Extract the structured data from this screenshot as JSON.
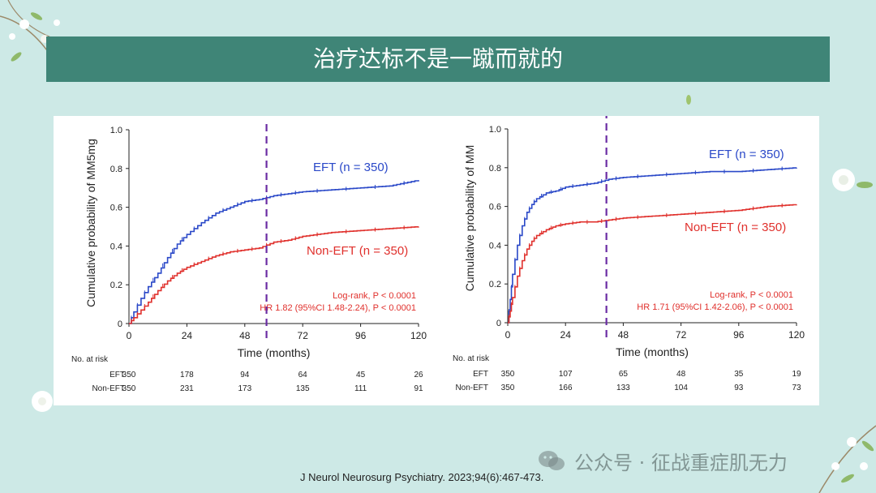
{
  "slide": {
    "title": "治疗达标不是一蹴而就的",
    "citation": "J Neurol Neurosurg Psychiatry. 2023;94(6):467-473.",
    "watermark": "公众号 · 征战重症肌无力"
  },
  "colors": {
    "title_bar": "#3f8577",
    "background": "#cde9e6",
    "eft": "#2a48c8",
    "non_eft": "#e0302c",
    "marker": "#6a2ca3"
  },
  "chart_data": [
    {
      "type": "line",
      "ylabel": "Cumulative probability of MM5mg",
      "xlabel": "Time (months)",
      "xlim": [
        0,
        120
      ],
      "ylim": [
        0,
        1.0
      ],
      "x_ticks": [
        "0",
        "24",
        "48",
        "72",
        "96",
        "120"
      ],
      "y_ticks": [
        "0",
        "0.2",
        "0.4",
        "0.6",
        "0.8",
        "1.0"
      ],
      "marker_line_x": 57,
      "series": [
        {
          "name": "EFT  (n = 350)",
          "x": [
            0,
            2,
            5,
            8,
            12,
            16,
            20,
            24,
            30,
            36,
            42,
            48,
            54,
            60,
            66,
            72,
            84,
            96,
            108,
            120
          ],
          "y": [
            0,
            0.06,
            0.13,
            0.19,
            0.26,
            0.34,
            0.41,
            0.46,
            0.52,
            0.57,
            0.6,
            0.63,
            0.64,
            0.66,
            0.67,
            0.68,
            0.69,
            0.7,
            0.71,
            0.74
          ]
        },
        {
          "name": "Non-EFT (n = 350)",
          "x": [
            0,
            2,
            5,
            8,
            12,
            16,
            20,
            24,
            30,
            36,
            42,
            48,
            54,
            60,
            66,
            72,
            84,
            96,
            108,
            120
          ],
          "y": [
            0,
            0.03,
            0.07,
            0.11,
            0.17,
            0.22,
            0.26,
            0.29,
            0.32,
            0.35,
            0.37,
            0.38,
            0.39,
            0.42,
            0.43,
            0.45,
            0.47,
            0.48,
            0.49,
            0.5
          ]
        }
      ],
      "stats": [
        "Log-rank, P < 0.0001",
        "HR 1.82 (95%CI 1.48-2.24), P < 0.0001"
      ],
      "risk_table": {
        "header": "No. at risk",
        "rows": [
          {
            "label": "EFT",
            "values": [
              "350",
              "178",
              "94",
              "64",
              "45",
              "26"
            ]
          },
          {
            "label": "Non-EFT",
            "values": [
              "350",
              "231",
              "173",
              "135",
              "111",
              "91"
            ]
          }
        ]
      }
    },
    {
      "type": "line",
      "ylabel": "Cumulative probability of MM",
      "xlabel": "Time (months)",
      "xlim": [
        0,
        120
      ],
      "ylim": [
        0,
        1.0
      ],
      "x_ticks": [
        "0",
        "24",
        "48",
        "72",
        "96",
        "120"
      ],
      "y_ticks": [
        "0",
        "0.2",
        "0.4",
        "0.6",
        "0.8",
        "1.0"
      ],
      "marker_line_x": 41,
      "series": [
        {
          "name": "EFT (n = 350)",
          "x": [
            0,
            1,
            2,
            4,
            6,
            8,
            10,
            12,
            16,
            20,
            24,
            30,
            36,
            42,
            48,
            60,
            72,
            84,
            96,
            108,
            120
          ],
          "y": [
            0,
            0.12,
            0.25,
            0.4,
            0.5,
            0.57,
            0.61,
            0.64,
            0.67,
            0.68,
            0.7,
            0.71,
            0.72,
            0.74,
            0.75,
            0.76,
            0.77,
            0.78,
            0.78,
            0.79,
            0.8
          ]
        },
        {
          "name": "Non-EFT (n = 350)",
          "x": [
            0,
            1,
            2,
            4,
            6,
            8,
            10,
            12,
            16,
            20,
            24,
            30,
            36,
            42,
            48,
            60,
            72,
            84,
            96,
            108,
            120
          ],
          "y": [
            0,
            0.06,
            0.13,
            0.24,
            0.32,
            0.38,
            0.42,
            0.45,
            0.48,
            0.5,
            0.51,
            0.52,
            0.52,
            0.53,
            0.54,
            0.55,
            0.56,
            0.57,
            0.58,
            0.6,
            0.61
          ]
        }
      ],
      "stats": [
        "Log-rank, P < 0.0001",
        "HR 1.71 (95%CI 1.42-2.06), P < 0.0001"
      ],
      "risk_table": {
        "header": "No. at risk",
        "rows": [
          {
            "label": "EFT",
            "values": [
              "350",
              "107",
              "65",
              "48",
              "35",
              "19"
            ]
          },
          {
            "label": "Non-EFT",
            "values": [
              "350",
              "166",
              "133",
              "104",
              "93",
              "73"
            ]
          }
        ]
      }
    }
  ]
}
